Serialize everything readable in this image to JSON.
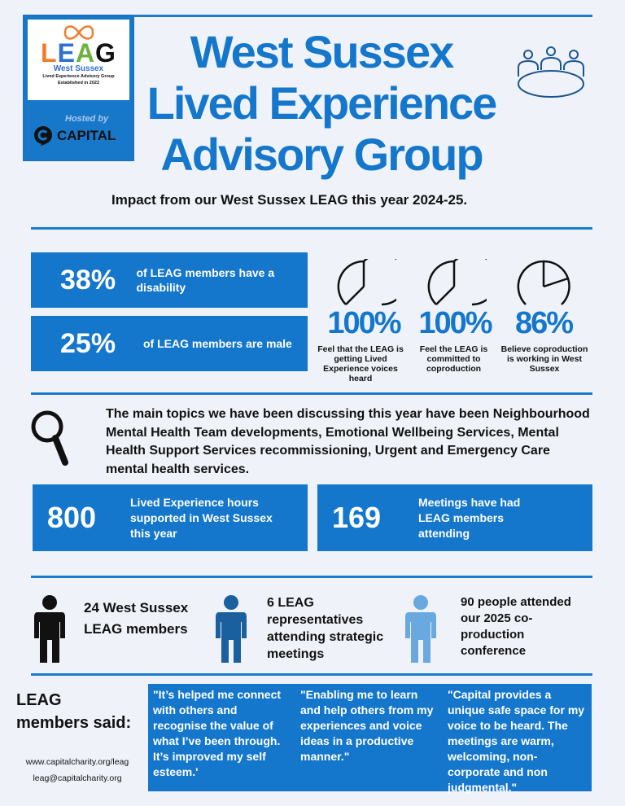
{
  "logo": {
    "letters": [
      "L",
      "E",
      "A",
      "G"
    ],
    "letter_colors": [
      "#f07c2a",
      "#2f6fd0",
      "#6cb33e",
      "#111111"
    ],
    "region": "West Sussex",
    "full_name": "Lived Experience Advisory Group",
    "established": "Established in 2022",
    "hosted_by": "Hosted by",
    "host": "CAPITAL"
  },
  "header": {
    "title_lines": [
      "West Sussex",
      "Lived Experience",
      "Advisory Group"
    ],
    "subtitle": "Impact from our West Sussex LEAG this year 2024-25.",
    "icon": "meeting-table-icon"
  },
  "stats": [
    {
      "value": "38%",
      "label": "of LEAG members have a disability"
    },
    {
      "value": "25%",
      "label": "of LEAG members are male"
    }
  ],
  "surveys": [
    {
      "value": "100%",
      "percent": 100,
      "caption": "Feel that the LEAG is  getting Lived Experience voices heard"
    },
    {
      "value": "100%",
      "percent": 100,
      "caption": "Feel the LEAG is committed to coproduction"
    },
    {
      "value": "86%",
      "percent": 86,
      "caption": "Believe coproduction is working in West Sussex"
    }
  ],
  "topics": {
    "icon": "magnifier-icon",
    "text": "The main topics we have been discussing this year have been Neighbourhood Mental Health Team developments, Emotional Wellbeing Services, Mental Health Support Services recommissioning, Urgent and Emergency Care mental health services."
  },
  "counts": [
    {
      "value": "800",
      "label": "Lived Experience hours supported in West Sussex this year"
    },
    {
      "value": "169",
      "label": "Meetings have had LEAG members attending"
    }
  ],
  "people": [
    {
      "text": "24 West Sussex LEAG members",
      "color": "#111111"
    },
    {
      "text": "6 LEAG representatives attending strategic meetings",
      "color": "#1a5f9e"
    },
    {
      "text": "90 people attended our 2025 co-production conference",
      "color": "#6aa8e0"
    }
  ],
  "quotes": {
    "heading": "LEAG members said:",
    "items": [
      "\"It’s helped me connect with others and recognise the value of what I’ve been through. It’s improved my self esteem.'",
      "\"Enabling me to learn and help others from my experiences and voice ideas in a productive manner.\"",
      "\"Capital provides a unique safe space for my voice to be heard. The meetings are warm, welcoming, non-corporate and non judgmental.\""
    ]
  },
  "contact": {
    "website": "www.capitalcharity.org/leag",
    "email": "leag@capitalcharity.org"
  },
  "colors": {
    "brand_blue": "#1577cc",
    "background": "#eff3f9"
  }
}
